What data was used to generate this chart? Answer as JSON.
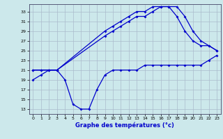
{
  "bg_color": "#cce8eb",
  "grid_color": "#aabbcc",
  "line_color": "#0000cc",
  "xlabel": "Graphe des températures (°c)",
  "xlim": [
    -0.5,
    23.5
  ],
  "ylim": [
    12,
    34.5
  ],
  "yticks": [
    13,
    15,
    17,
    19,
    21,
    23,
    25,
    27,
    29,
    31,
    33
  ],
  "xticks": [
    0,
    1,
    2,
    3,
    4,
    5,
    6,
    7,
    8,
    9,
    10,
    11,
    12,
    13,
    14,
    15,
    16,
    17,
    18,
    19,
    20,
    21,
    22,
    23
  ],
  "curve_min_x": [
    0,
    1,
    2,
    3,
    4,
    5,
    6,
    7,
    8,
    9,
    10,
    11,
    12,
    13,
    14,
    15,
    16,
    17,
    18,
    19,
    20,
    21,
    22,
    23
  ],
  "curve_min_y": [
    19,
    20,
    21,
    21,
    19,
    14,
    13,
    13,
    17,
    20,
    21,
    21,
    21,
    21,
    22,
    22,
    22,
    22,
    22,
    22,
    22,
    22,
    23,
    24
  ],
  "curve_max1_x": [
    0,
    1,
    2,
    3,
    9,
    10,
    11,
    12,
    13,
    14,
    15,
    16,
    17,
    18,
    19,
    20,
    21,
    22,
    23
  ],
  "curve_max1_y": [
    21,
    21,
    21,
    21,
    28,
    29,
    30,
    31,
    32,
    32,
    33,
    34,
    34,
    32,
    29,
    27,
    26,
    26,
    25
  ],
  "curve_max2_x": [
    0,
    1,
    2,
    3,
    9,
    10,
    11,
    12,
    13,
    14,
    15,
    16,
    17,
    18,
    19,
    20,
    21,
    22,
    23
  ],
  "curve_max2_y": [
    21,
    21,
    21,
    21,
    29,
    30,
    31,
    32,
    33,
    33,
    34,
    34,
    34,
    34,
    32,
    29,
    27,
    26,
    25
  ],
  "marker_size": 2.0,
  "line_width": 0.9,
  "tick_fontsize": 4.5,
  "xlabel_fontsize": 6.0
}
